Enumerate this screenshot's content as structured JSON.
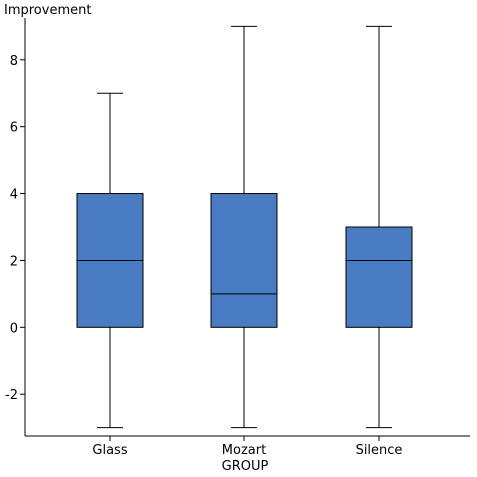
{
  "chart_data": {
    "type": "box",
    "ylabel": "Improvement",
    "xlabel": "GROUP",
    "categories": [
      "Glass",
      "Mozart",
      "Silence"
    ],
    "boxes": [
      {
        "category": "Glass",
        "min": -3,
        "q1": 0,
        "median": 2,
        "q3": 4,
        "max": 7
      },
      {
        "category": "Mozart",
        "min": -3,
        "q1": 0,
        "median": 1,
        "q3": 4,
        "max": 9
      },
      {
        "category": "Silence",
        "min": -3,
        "q1": 0,
        "median": 2,
        "q3": 3,
        "max": 9
      }
    ],
    "ylim": [
      -3.25,
      9.25
    ],
    "yticks": [
      -2,
      0,
      2,
      4,
      6,
      8
    ],
    "box_color": "#4a7cc4",
    "grid": false
  }
}
